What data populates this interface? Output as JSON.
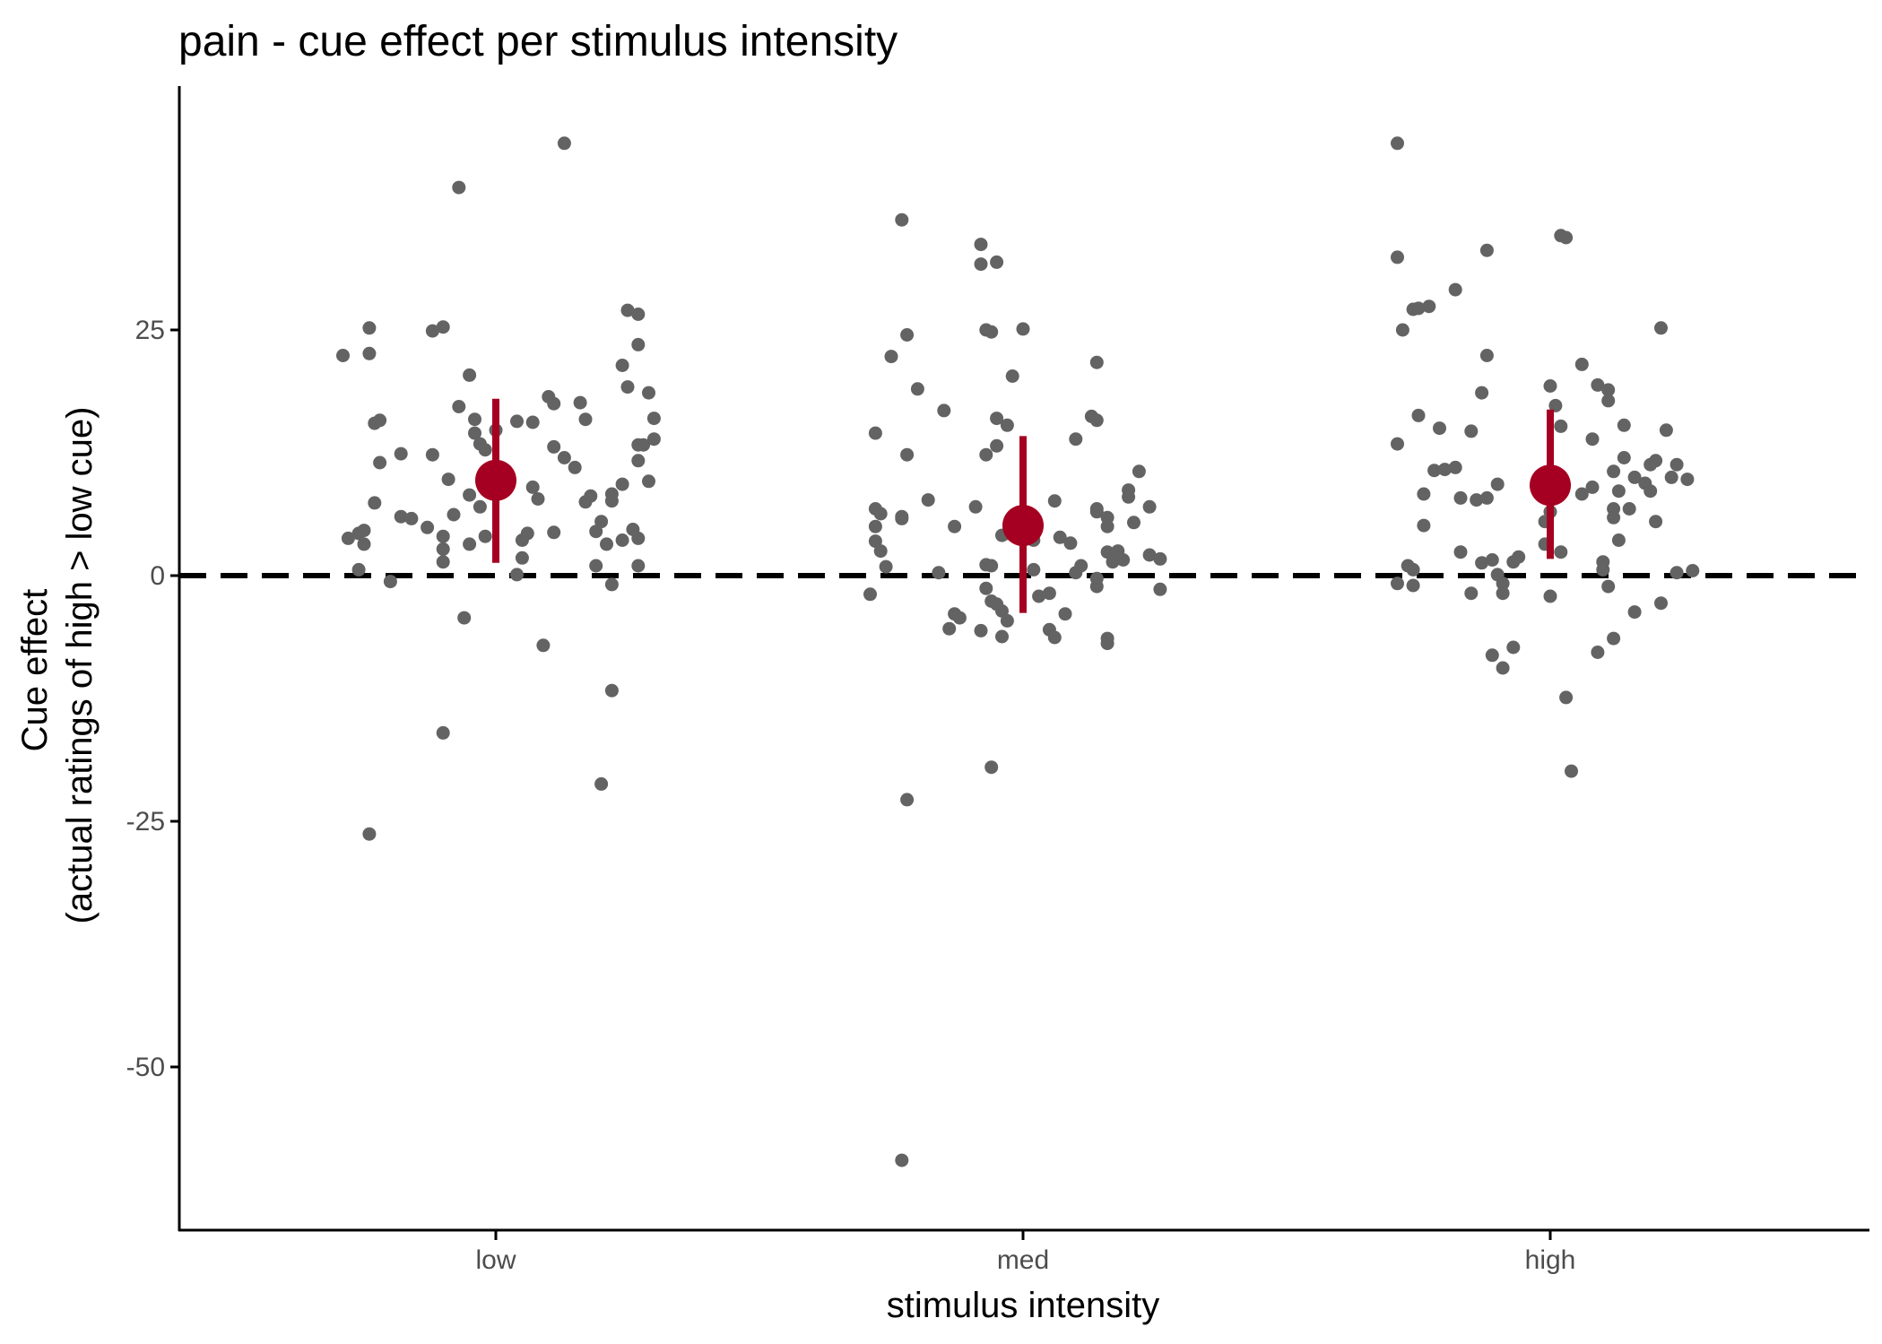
{
  "chart_data": {
    "type": "scatter",
    "title": "pain - cue effect per stimulus intensity",
    "xlabel": "stimulus intensity",
    "ylabel_lines": [
      "Cue effect",
      "(actual ratings of high > low cue)"
    ],
    "categories": [
      "low",
      "med",
      "high"
    ],
    "yticks": [
      25,
      0,
      -25,
      -50
    ],
    "ylim": [
      -66,
      50
    ],
    "grid": false,
    "reference_line": {
      "y": 0,
      "style": "dashed"
    },
    "colors": {
      "points": "#636363",
      "summary": "#a50021",
      "reference": "#000000",
      "axis": "#000000"
    },
    "series": [
      {
        "category": "low",
        "mean": 9.7,
        "interval": [
          1.3,
          18.0
        ],
        "points": [
          [
            -0.29,
            22.4
          ],
          [
            -0.24,
            25.2
          ],
          [
            -0.24,
            22.6
          ],
          [
            -0.22,
            15.8
          ],
          [
            -0.23,
            15.5
          ],
          [
            -0.22,
            11.5
          ],
          [
            -0.23,
            7.4
          ],
          [
            -0.28,
            3.8
          ],
          [
            -0.26,
            4.3
          ],
          [
            -0.25,
            4.6
          ],
          [
            -0.25,
            3.2
          ],
          [
            -0.26,
            0.6
          ],
          [
            -0.2,
            -0.6
          ],
          [
            -0.24,
            -26.3
          ],
          [
            -0.18,
            12.4
          ],
          [
            -0.18,
            6.0
          ],
          [
            -0.16,
            5.8
          ],
          [
            -0.13,
            4.9
          ],
          [
            -0.12,
            12.3
          ],
          [
            -0.12,
            24.9
          ],
          [
            -0.1,
            25.3
          ],
          [
            -0.07,
            39.5
          ],
          [
            -0.05,
            20.4
          ],
          [
            -0.07,
            17.2
          ],
          [
            -0.04,
            15.9
          ],
          [
            -0.04,
            14.5
          ],
          [
            -0.03,
            13.4
          ],
          [
            -0.02,
            12.8
          ],
          [
            -0.09,
            9.8
          ],
          [
            -0.05,
            8.2
          ],
          [
            -0.03,
            7.0
          ],
          [
            -0.08,
            6.2
          ],
          [
            -0.1,
            4.0
          ],
          [
            -0.05,
            3.2
          ],
          [
            -0.02,
            4.0
          ],
          [
            -0.1,
            2.7
          ],
          [
            -0.1,
            1.4
          ],
          [
            -0.06,
            -4.3
          ],
          [
            -0.1,
            -16.0
          ],
          [
            0.0,
            14.8
          ],
          [
            0.04,
            15.7
          ],
          [
            0.07,
            15.6
          ],
          [
            0.1,
            18.2
          ],
          [
            0.11,
            17.5
          ],
          [
            0.11,
            13.1
          ],
          [
            0.13,
            12.0
          ],
          [
            0.15,
            11.0
          ],
          [
            0.17,
            7.5
          ],
          [
            0.18,
            8.1
          ],
          [
            0.07,
            9.0
          ],
          [
            0.08,
            7.8
          ],
          [
            0.05,
            3.6
          ],
          [
            0.05,
            1.8
          ],
          [
            0.06,
            4.3
          ],
          [
            0.04,
            0.1
          ],
          [
            0.11,
            4.4
          ],
          [
            0.09,
            -7.1
          ],
          [
            0.13,
            44.0
          ],
          [
            0.16,
            17.6
          ],
          [
            0.17,
            15.9
          ],
          [
            0.19,
            4.5
          ],
          [
            0.2,
            5.5
          ],
          [
            0.21,
            3.2
          ],
          [
            0.19,
            1.0
          ],
          [
            0.22,
            -0.9
          ],
          [
            0.22,
            -11.7
          ],
          [
            0.2,
            -21.2
          ],
          [
            0.22,
            8.3
          ],
          [
            0.22,
            7.6
          ],
          [
            0.24,
            9.3
          ],
          [
            0.24,
            3.6
          ],
          [
            0.24,
            21.4
          ],
          [
            0.25,
            19.2
          ],
          [
            0.25,
            27.0
          ],
          [
            0.26,
            4.7
          ],
          [
            0.27,
            3.8
          ],
          [
            0.27,
            1.0
          ],
          [
            0.27,
            13.3
          ],
          [
            0.27,
            11.7
          ],
          [
            0.28,
            13.3
          ],
          [
            0.27,
            26.6
          ],
          [
            0.27,
            23.5
          ],
          [
            0.29,
            18.6
          ],
          [
            0.3,
            16.0
          ],
          [
            0.3,
            13.9
          ],
          [
            0.29,
            9.6
          ]
        ]
      },
      {
        "category": "med",
        "mean": 5.1,
        "interval": [
          -3.8,
          14.2
        ],
        "points": [
          [
            -0.29,
            -1.9
          ],
          [
            -0.28,
            6.8
          ],
          [
            -0.28,
            5.0
          ],
          [
            -0.28,
            3.5
          ],
          [
            -0.27,
            2.5
          ],
          [
            -0.27,
            6.3
          ],
          [
            -0.26,
            0.9
          ],
          [
            -0.28,
            14.5
          ],
          [
            -0.25,
            22.3
          ],
          [
            -0.23,
            6.0
          ],
          [
            -0.23,
            5.8
          ],
          [
            -0.23,
            -59.5
          ],
          [
            -0.22,
            -22.8
          ],
          [
            -0.22,
            12.3
          ],
          [
            -0.22,
            24.5
          ],
          [
            -0.2,
            19.0
          ],
          [
            -0.18,
            7.7
          ],
          [
            -0.15,
            16.8
          ],
          [
            -0.16,
            0.3
          ],
          [
            -0.14,
            -5.4
          ],
          [
            -0.12,
            -4.3
          ],
          [
            -0.13,
            -3.9
          ],
          [
            -0.13,
            5.0
          ],
          [
            -0.09,
            7.0
          ],
          [
            -0.08,
            -5.6
          ],
          [
            -0.07,
            -1.3
          ],
          [
            -0.06,
            -2.6
          ],
          [
            -0.05,
            -2.9
          ],
          [
            -0.04,
            -3.6
          ],
          [
            -0.03,
            -4.6
          ],
          [
            -0.04,
            -6.2
          ],
          [
            -0.08,
            33.7
          ],
          [
            -0.08,
            31.7
          ],
          [
            -0.05,
            31.9
          ],
          [
            -0.07,
            25.0
          ],
          [
            -0.06,
            24.8
          ],
          [
            -0.02,
            20.3
          ],
          [
            -0.05,
            16.0
          ],
          [
            -0.03,
            15.3
          ],
          [
            -0.07,
            12.3
          ],
          [
            -0.05,
            13.2
          ],
          [
            -0.04,
            4.1
          ],
          [
            -0.03,
            4.3
          ],
          [
            -0.06,
            1.0
          ],
          [
            -0.07,
            1.1
          ],
          [
            -0.06,
            -19.5
          ],
          [
            -0.23,
            36.2
          ],
          [
            0.0,
            25.1
          ],
          [
            0.02,
            3.6
          ],
          [
            0.02,
            0.6
          ],
          [
            0.03,
            -2.1
          ],
          [
            0.05,
            -5.5
          ],
          [
            0.06,
            -6.3
          ],
          [
            0.05,
            -1.8
          ],
          [
            0.06,
            7.6
          ],
          [
            0.07,
            3.9
          ],
          [
            0.08,
            -3.9
          ],
          [
            0.09,
            3.3
          ],
          [
            0.1,
            0.3
          ],
          [
            0.1,
            13.9
          ],
          [
            0.11,
            1.0
          ],
          [
            0.13,
            16.2
          ],
          [
            0.14,
            6.8
          ],
          [
            0.14,
            15.8
          ],
          [
            0.14,
            21.7
          ],
          [
            0.14,
            -0.3
          ],
          [
            0.14,
            -1.1
          ],
          [
            0.14,
            6.5
          ],
          [
            0.16,
            5.9
          ],
          [
            0.16,
            5.0
          ],
          [
            0.16,
            2.4
          ],
          [
            0.16,
            -6.4
          ],
          [
            0.16,
            -6.9
          ],
          [
            0.18,
            2.5
          ],
          [
            0.17,
            1.4
          ],
          [
            0.19,
            1.6
          ],
          [
            0.2,
            8.0
          ],
          [
            0.2,
            8.7
          ],
          [
            0.22,
            10.6
          ],
          [
            0.21,
            5.4
          ],
          [
            0.24,
            7.0
          ],
          [
            0.24,
            2.1
          ],
          [
            0.26,
            1.7
          ],
          [
            0.26,
            -1.4
          ]
        ]
      },
      {
        "category": "high",
        "mean": 9.2,
        "interval": [
          1.7,
          16.9
        ],
        "points": [
          [
            -0.29,
            44.0
          ],
          [
            -0.29,
            32.4
          ],
          [
            -0.28,
            25.0
          ],
          [
            -0.26,
            27.1
          ],
          [
            -0.25,
            27.2
          ],
          [
            -0.23,
            27.4
          ],
          [
            -0.29,
            13.4
          ],
          [
            -0.25,
            16.3
          ],
          [
            -0.24,
            8.3
          ],
          [
            -0.22,
            10.7
          ],
          [
            -0.2,
            10.8
          ],
          [
            -0.18,
            11.0
          ],
          [
            -0.24,
            5.1
          ],
          [
            -0.27,
            1.0
          ],
          [
            -0.26,
            0.6
          ],
          [
            -0.26,
            -1.0
          ],
          [
            -0.29,
            -0.8
          ],
          [
            -0.21,
            15.0
          ],
          [
            -0.17,
            7.9
          ],
          [
            -0.17,
            2.4
          ],
          [
            -0.15,
            -1.8
          ],
          [
            -0.18,
            29.1
          ],
          [
            -0.12,
            33.1
          ],
          [
            -0.12,
            22.4
          ],
          [
            -0.13,
            18.6
          ],
          [
            -0.14,
            7.7
          ],
          [
            -0.12,
            7.9
          ],
          [
            -0.1,
            9.3
          ],
          [
            -0.15,
            14.7
          ],
          [
            -0.11,
            1.6
          ],
          [
            -0.13,
            1.3
          ],
          [
            -0.1,
            0.1
          ],
          [
            -0.09,
            -0.8
          ],
          [
            -0.09,
            -1.8
          ],
          [
            -0.11,
            -8.1
          ],
          [
            -0.09,
            -9.4
          ],
          [
            -0.07,
            -7.3
          ],
          [
            -0.07,
            1.4
          ],
          [
            -0.06,
            1.9
          ],
          [
            0.0,
            19.3
          ],
          [
            0.0,
            6.5
          ],
          [
            -0.01,
            5.5
          ],
          [
            -0.01,
            3.2
          ],
          [
            0.0,
            -2.1
          ],
          [
            0.01,
            17.3
          ],
          [
            0.02,
            15.2
          ],
          [
            0.02,
            2.4
          ],
          [
            0.03,
            -12.4
          ],
          [
            0.04,
            -19.9
          ],
          [
            0.02,
            34.6
          ],
          [
            0.03,
            34.4
          ],
          [
            0.06,
            21.5
          ],
          [
            0.06,
            8.3
          ],
          [
            0.08,
            13.9
          ],
          [
            0.09,
            19.4
          ],
          [
            0.08,
            9.0
          ],
          [
            0.09,
            -7.8
          ],
          [
            0.1,
            0.6
          ],
          [
            0.1,
            1.4
          ],
          [
            0.11,
            -1.1
          ],
          [
            0.11,
            18.9
          ],
          [
            0.11,
            17.8
          ],
          [
            0.12,
            -6.4
          ],
          [
            0.12,
            5.9
          ],
          [
            0.12,
            6.8
          ],
          [
            0.13,
            3.6
          ],
          [
            0.12,
            10.6
          ],
          [
            0.13,
            8.6
          ],
          [
            0.14,
            15.3
          ],
          [
            0.14,
            12.0
          ],
          [
            0.15,
            6.8
          ],
          [
            0.16,
            -3.7
          ],
          [
            0.16,
            10.0
          ],
          [
            0.18,
            9.4
          ],
          [
            0.19,
            8.6
          ],
          [
            0.2,
            5.5
          ],
          [
            0.19,
            11.3
          ],
          [
            0.2,
            11.7
          ],
          [
            0.21,
            -2.8
          ],
          [
            0.21,
            25.2
          ],
          [
            0.22,
            14.8
          ],
          [
            0.23,
            10.0
          ],
          [
            0.24,
            11.3
          ],
          [
            0.24,
            0.3
          ],
          [
            0.26,
            9.8
          ],
          [
            0.27,
            0.5
          ]
        ]
      }
    ]
  }
}
